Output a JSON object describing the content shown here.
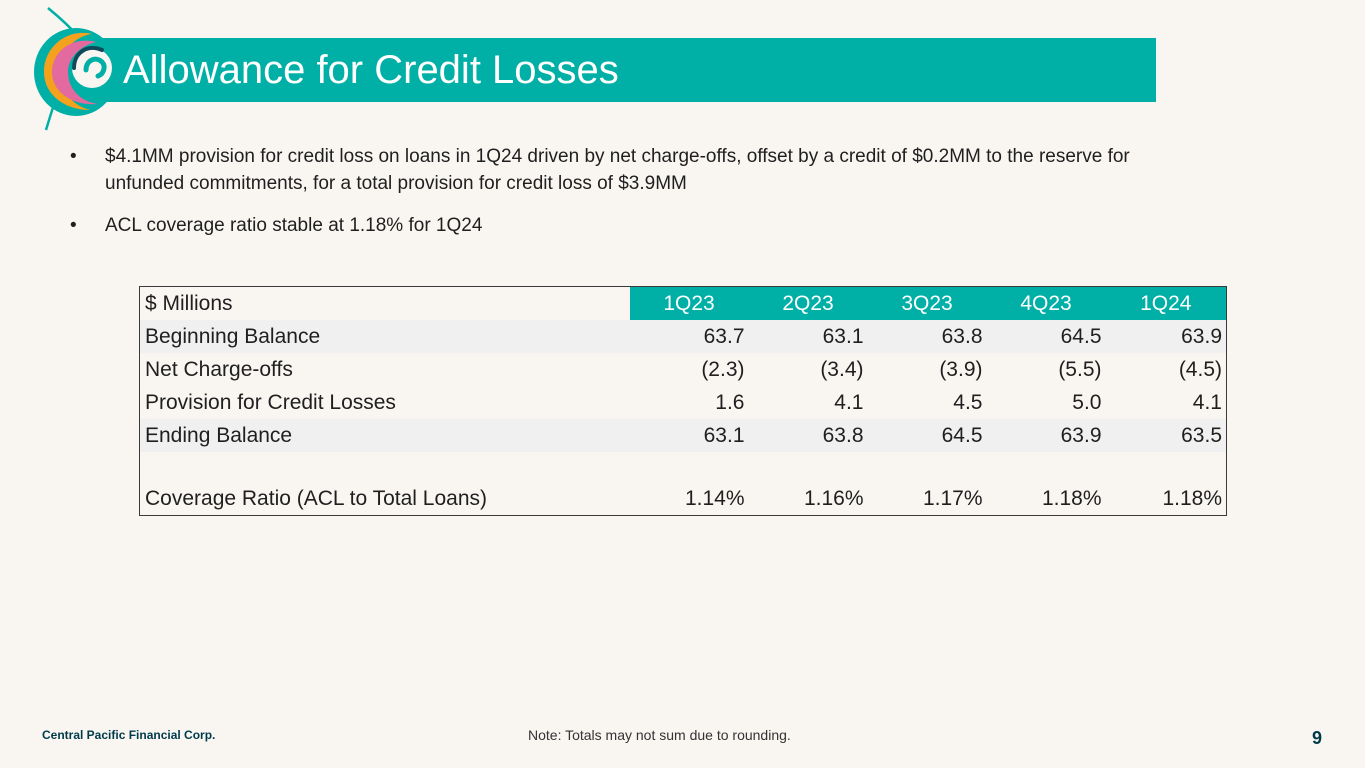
{
  "title": "Allowance for Credit Losses",
  "bullets": [
    "$4.1MM provision for credit loss on loans in 1Q24 driven by net charge-offs, offset by a credit of $0.2MM to the reserve for unfunded commitments, for a total provision for credit loss of $3.9MM",
    "ACL coverage ratio stable at 1.18% for 1Q24"
  ],
  "bullet_glyph": "•",
  "table": {
    "header_label": "$ Millions",
    "quarters": [
      "1Q23",
      "2Q23",
      "3Q23",
      "4Q23",
      "1Q24"
    ],
    "rows": [
      {
        "label": "Beginning Balance",
        "values": [
          "63.7",
          "63.1",
          "63.8",
          "64.5",
          "63.9"
        ]
      },
      {
        "label": "Net Charge-offs",
        "values": [
          "(2.3)",
          "(3.4)",
          "(3.9)",
          "(5.5)",
          "(4.5)"
        ]
      },
      {
        "label": "Provision for Credit Losses",
        "values": [
          "1.6",
          "4.1",
          "4.5",
          "5.0",
          "4.1"
        ]
      },
      {
        "label": "Ending Balance",
        "values": [
          "63.1",
          "63.8",
          "64.5",
          "63.9",
          "63.5"
        ]
      },
      {
        "label": "Coverage Ratio (ACL to Total Loans)",
        "values": [
          "1.14%",
          "1.16%",
          "1.17%",
          "1.18%",
          "1.18%"
        ]
      }
    ]
  },
  "footer": {
    "company": "Central Pacific Financial Corp.",
    "note": "Note: Totals may not sum due to rounding.",
    "page": "9"
  },
  "colors": {
    "accent": "#00b0a6",
    "background": "#f9f6f2",
    "footer_text": "#003a4a"
  },
  "logo_icon": "wave-swirl-logo-icon"
}
